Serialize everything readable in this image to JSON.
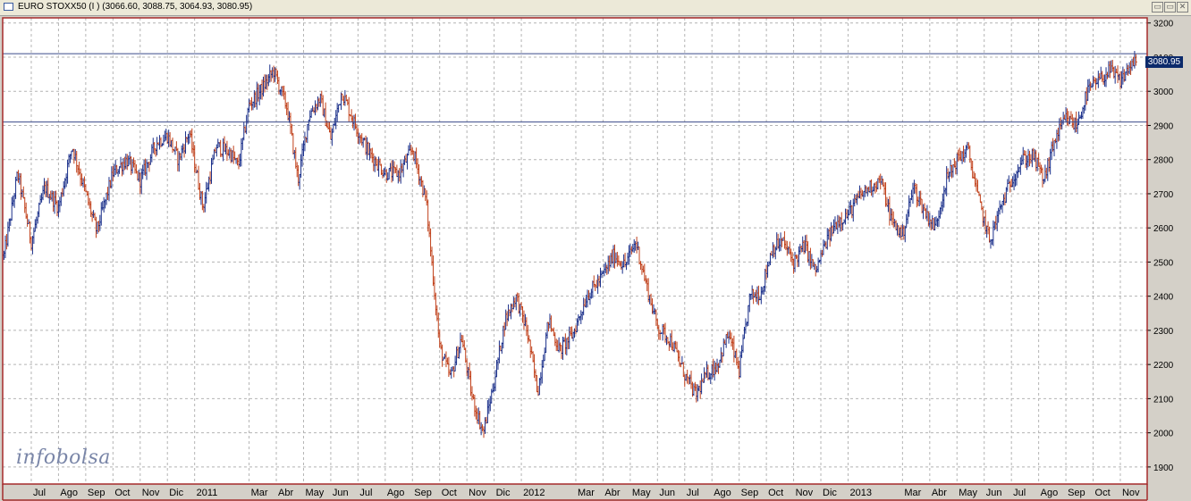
{
  "window": {
    "title": "EURO STOXX50 (I ) (3066.60, 3088.75, 3064.93, 3080.95)",
    "minimize_glyph": "▭",
    "restore_glyph": "▭",
    "close_glyph": "✕"
  },
  "watermark": "infobolsa",
  "chart_data": {
    "type": "ohlc",
    "title": "EURO STOXX50 (I ) (3066.60, 3088.75, 3064.93, 3080.95)",
    "last_price_label": "3080.95",
    "ylim": [
      1850,
      3215
    ],
    "y_ticks": [
      "3200",
      "3100",
      "3000",
      "2900",
      "2800",
      "2700",
      "2600",
      "2500",
      "2400",
      "2300",
      "2200",
      "2100",
      "2000",
      "1900"
    ],
    "x_ticks": [
      "Jul",
      "Ago",
      "Sep",
      "Oct",
      "Nov",
      "Dic",
      "2011",
      "Mar",
      "Abr",
      "May",
      "Jun",
      "Jul",
      "Ago",
      "Sep",
      "Oct",
      "Nov",
      "Dic",
      "2012",
      "Mar",
      "Abr",
      "May",
      "Jun",
      "Jul",
      "Ago",
      "Sep",
      "Oct",
      "Nov",
      "Dic",
      "2013",
      "Mar",
      "Abr",
      "May",
      "Jun",
      "Jul",
      "Ago",
      "Sep",
      "Oct",
      "Nov"
    ],
    "x_tick_months": [
      6,
      7,
      8,
      9,
      10,
      11,
      12,
      14,
      15,
      16,
      17,
      18,
      19,
      20,
      21,
      22,
      23,
      24,
      26,
      27,
      28,
      29,
      30,
      31,
      32,
      33,
      34,
      35,
      36,
      38,
      39,
      40,
      41,
      42,
      43,
      44,
      45,
      46
    ],
    "horizontal_lines": [
      3110,
      2910
    ],
    "series_anchors": [
      {
        "m": 5.0,
        "v": 2520
      },
      {
        "m": 5.5,
        "v": 2760
      },
      {
        "m": 6.0,
        "v": 2560
      },
      {
        "m": 6.5,
        "v": 2720
      },
      {
        "m": 7.0,
        "v": 2660
      },
      {
        "m": 7.5,
        "v": 2840
      },
      {
        "m": 8.0,
        "v": 2700
      },
      {
        "m": 8.4,
        "v": 2590
      },
      {
        "m": 9.0,
        "v": 2760
      },
      {
        "m": 9.5,
        "v": 2800
      },
      {
        "m": 10.0,
        "v": 2740
      },
      {
        "m": 10.6,
        "v": 2850
      },
      {
        "m": 11.0,
        "v": 2870
      },
      {
        "m": 11.4,
        "v": 2800
      },
      {
        "m": 11.8,
        "v": 2880
      },
      {
        "m": 12.3,
        "v": 2660
      },
      {
        "m": 12.8,
        "v": 2840
      },
      {
        "m": 13.3,
        "v": 2820
      },
      {
        "m": 13.6,
        "v": 2780
      },
      {
        "m": 14.0,
        "v": 2960
      },
      {
        "m": 14.5,
        "v": 3010
      },
      {
        "m": 14.9,
        "v": 3060
      },
      {
        "m": 15.4,
        "v": 2950
      },
      {
        "m": 15.8,
        "v": 2740
      },
      {
        "m": 16.2,
        "v": 2930
      },
      {
        "m": 16.6,
        "v": 2980
      },
      {
        "m": 17.0,
        "v": 2860
      },
      {
        "m": 17.4,
        "v": 3000
      },
      {
        "m": 17.9,
        "v": 2900
      },
      {
        "m": 18.4,
        "v": 2820
      },
      {
        "m": 19.0,
        "v": 2760
      },
      {
        "m": 19.5,
        "v": 2760
      },
      {
        "m": 20.0,
        "v": 2830
      },
      {
        "m": 20.5,
        "v": 2680
      },
      {
        "m": 21.0,
        "v": 2250
      },
      {
        "m": 21.4,
        "v": 2160
      },
      {
        "m": 21.8,
        "v": 2280
      },
      {
        "m": 22.2,
        "v": 2100
      },
      {
        "m": 22.6,
        "v": 2000
      },
      {
        "m": 23.0,
        "v": 2150
      },
      {
        "m": 23.4,
        "v": 2330
      },
      {
        "m": 23.8,
        "v": 2400
      },
      {
        "m": 24.2,
        "v": 2300
      },
      {
        "m": 24.6,
        "v": 2120
      },
      {
        "m": 25.0,
        "v": 2330
      },
      {
        "m": 25.4,
        "v": 2240
      },
      {
        "m": 25.9,
        "v": 2290
      },
      {
        "m": 26.4,
        "v": 2400
      },
      {
        "m": 26.9,
        "v": 2450
      },
      {
        "m": 27.4,
        "v": 2520
      },
      {
        "m": 27.8,
        "v": 2490
      },
      {
        "m": 28.2,
        "v": 2560
      },
      {
        "m": 28.6,
        "v": 2430
      },
      {
        "m": 29.0,
        "v": 2310
      },
      {
        "m": 29.5,
        "v": 2270
      },
      {
        "m": 30.0,
        "v": 2170
      },
      {
        "m": 30.4,
        "v": 2110
      },
      {
        "m": 30.8,
        "v": 2170
      },
      {
        "m": 31.2,
        "v": 2200
      },
      {
        "m": 31.6,
        "v": 2290
      },
      {
        "m": 32.0,
        "v": 2180
      },
      {
        "m": 32.4,
        "v": 2400
      },
      {
        "m": 32.8,
        "v": 2410
      },
      {
        "m": 33.2,
        "v": 2540
      },
      {
        "m": 33.6,
        "v": 2560
      },
      {
        "m": 34.0,
        "v": 2500
      },
      {
        "m": 34.4,
        "v": 2550
      },
      {
        "m": 34.8,
        "v": 2470
      },
      {
        "m": 35.2,
        "v": 2560
      },
      {
        "m": 35.6,
        "v": 2620
      },
      {
        "m": 36.0,
        "v": 2640
      },
      {
        "m": 36.4,
        "v": 2690
      },
      {
        "m": 36.8,
        "v": 2720
      },
      {
        "m": 37.2,
        "v": 2740
      },
      {
        "m": 37.6,
        "v": 2620
      },
      {
        "m": 38.0,
        "v": 2580
      },
      {
        "m": 38.4,
        "v": 2720
      },
      {
        "m": 38.8,
        "v": 2650
      },
      {
        "m": 39.2,
        "v": 2600
      },
      {
        "m": 39.6,
        "v": 2740
      },
      {
        "m": 40.0,
        "v": 2800
      },
      {
        "m": 40.4,
        "v": 2830
      },
      {
        "m": 40.8,
        "v": 2680
      },
      {
        "m": 41.2,
        "v": 2560
      },
      {
        "m": 41.6,
        "v": 2660
      },
      {
        "m": 42.0,
        "v": 2740
      },
      {
        "m": 42.4,
        "v": 2800
      },
      {
        "m": 42.8,
        "v": 2810
      },
      {
        "m": 43.2,
        "v": 2740
      },
      {
        "m": 43.6,
        "v": 2860
      },
      {
        "m": 44.0,
        "v": 2920
      },
      {
        "m": 44.4,
        "v": 2900
      },
      {
        "m": 44.8,
        "v": 3000
      },
      {
        "m": 45.2,
        "v": 3030
      },
      {
        "m": 45.6,
        "v": 3060
      },
      {
        "m": 46.0,
        "v": 3030
      },
      {
        "m": 46.4,
        "v": 3080
      }
    ],
    "series_end_month": 46.6
  },
  "colors": {
    "plot_bg": "#ffffff",
    "grid": "#b4b4b4",
    "frame": "#a52a2a",
    "bar_up": "#1a2f8a",
    "bar_down": "#c0401a",
    "hline": "#3a4a8a"
  }
}
